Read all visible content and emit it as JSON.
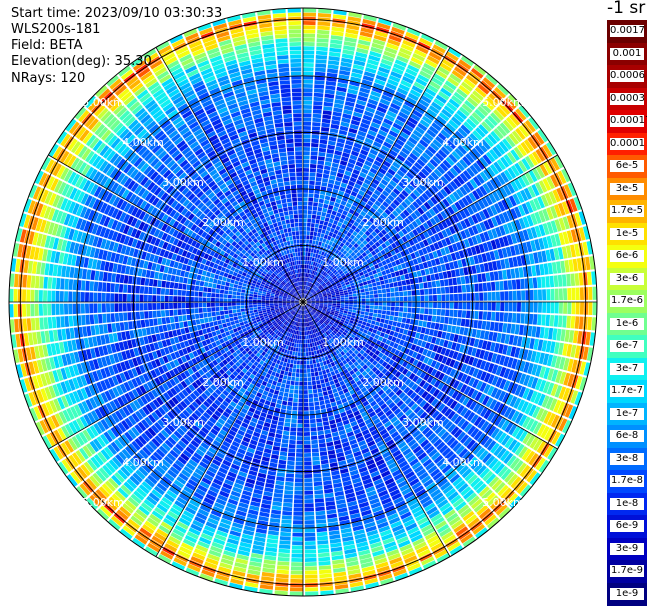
{
  "header": {
    "start_time": "Start time: 2023/09/10 03:30:33",
    "device": "WLS200s-181",
    "field": "Field: BETA",
    "elevation": "Elevation(deg): 35.30",
    "nrays": "NRays: 120"
  },
  "colorbar": {
    "unit_label": "-1 sr",
    "ticks": [
      "0.0017",
      "0.001",
      "0.0006",
      "0.0003",
      "0.00017",
      "0.0001",
      "6e-5",
      "3e-5",
      "1.7e-5",
      "1e-5",
      "6e-6",
      "3e-6",
      "1.7e-6",
      "1e-6",
      "6e-7",
      "3e-7",
      "1.7e-7",
      "1e-7",
      "6e-8",
      "3e-8",
      "1.7e-8",
      "1e-8",
      "6e-9",
      "3e-9",
      "1.7e-9",
      "1e-9"
    ],
    "colors": [
      "#6b0000",
      "#8b0000",
      "#a80000",
      "#c80000",
      "#e00000",
      "#ff2000",
      "#ff5a00",
      "#ff8c00",
      "#ffb400",
      "#ffe000",
      "#f4ff10",
      "#c8ff38",
      "#9cff60",
      "#70ff90",
      "#40ffc0",
      "#10f0f0",
      "#00d8ff",
      "#00b4ff",
      "#0090ff",
      "#006cff",
      "#0048ff",
      "#0028f0",
      "#0010d8",
      "#0000c0",
      "#0000a0",
      "#000080"
    ]
  },
  "chart_data": {
    "type": "heatmap",
    "subtype": "polar-ppi",
    "field": "BETA",
    "elevation_deg": 35.3,
    "n_rays": 120,
    "range_rings": [
      "1.00km",
      "2.00km",
      "3.00km",
      "4.00km",
      "5.00km"
    ],
    "range_ring_values_km": [
      1,
      2,
      3,
      4,
      5
    ],
    "max_range_km": 5.2,
    "spokes_deg": [
      0,
      30,
      60,
      90,
      120,
      150,
      180,
      210,
      240,
      270,
      300,
      330
    ],
    "profile_by_range": [
      {
        "range_km": 0.5,
        "value": "6e-9"
      },
      {
        "range_km": 1.0,
        "value": "1.7e-8"
      },
      {
        "range_km": 2.0,
        "value": "1.7e-8"
      },
      {
        "range_km": 3.0,
        "value": "1.7e-8"
      },
      {
        "range_km": 4.0,
        "value": "3e-8"
      },
      {
        "range_km": 4.6,
        "value": "6e-7"
      },
      {
        "range_km": 4.9,
        "value": "1e-5"
      },
      {
        "range_km": 5.05,
        "value": "6e-5"
      },
      {
        "range_km": 5.2,
        "value": "1e-7"
      }
    ]
  }
}
